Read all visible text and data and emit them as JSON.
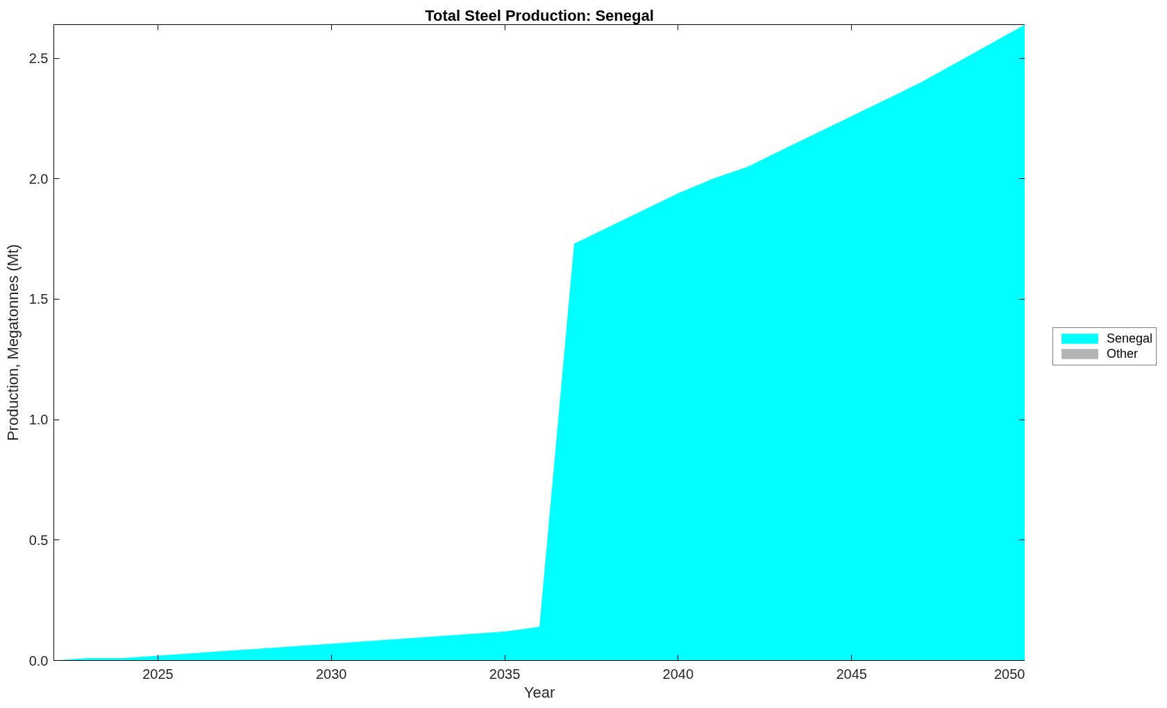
{
  "chart_data": {
    "type": "area",
    "title": "Total Steel Production: Senegal",
    "xlabel": "Year",
    "ylabel": "Production, Megatonnes (Mt)",
    "x": [
      2022,
      2023,
      2024,
      2025,
      2026,
      2027,
      2028,
      2029,
      2030,
      2031,
      2032,
      2033,
      2034,
      2035,
      2036,
      2037,
      2038,
      2039,
      2040,
      2041,
      2042,
      2043,
      2044,
      2045,
      2046,
      2047,
      2048,
      2049,
      2050
    ],
    "series": [
      {
        "name": "Senegal",
        "color": "#00ffff",
        "values": [
          0,
          0.01,
          0.01,
          0.02,
          0.03,
          0.04,
          0.05,
          0.06,
          0.07,
          0.08,
          0.09,
          0.1,
          0.11,
          0.12,
          0.14,
          1.73,
          1.8,
          1.87,
          1.94,
          2.0,
          2.05,
          2.12,
          2.19,
          2.26,
          2.33,
          2.4,
          2.48,
          2.56,
          2.64
        ]
      },
      {
        "name": "Other",
        "color": "#b3b3b3",
        "values": [
          null,
          null,
          null,
          null,
          null,
          null,
          null,
          null,
          null,
          null,
          null,
          null,
          null,
          null,
          null,
          null,
          null,
          null,
          null,
          null,
          null,
          null,
          null,
          null,
          null,
          null,
          null,
          null,
          null
        ]
      }
    ],
    "xlim": [
      2022,
      2050
    ],
    "ylim": [
      0,
      2.64
    ],
    "xticks": [
      2025,
      2030,
      2035,
      2040,
      2045,
      2050
    ],
    "yticks": [
      {
        "value": 0,
        "label": "0.0"
      },
      0.5,
      {
        "value": 1,
        "label": "1.0"
      },
      1.5,
      {
        "value": 2,
        "label": "2.0"
      },
      2.5
    ],
    "grid": false,
    "legend": "right"
  }
}
